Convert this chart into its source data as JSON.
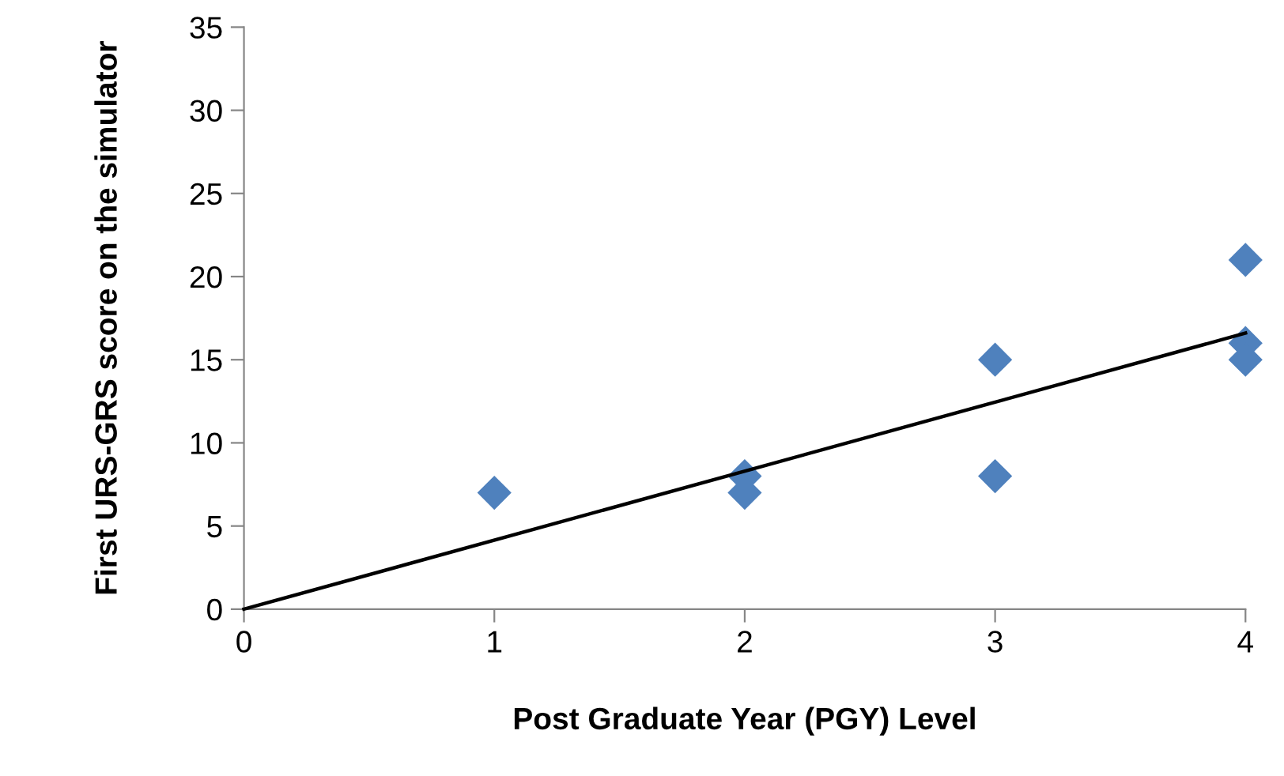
{
  "chart_data": {
    "type": "scatter",
    "xlabel": "Post Graduate Year (PGY) Level",
    "ylabel": "First URS-GRS score on the simulator",
    "xlim": [
      0,
      4
    ],
    "ylim": [
      0,
      35
    ],
    "xticks": [
      0,
      1,
      2,
      3,
      4
    ],
    "yticks": [
      0,
      5,
      10,
      15,
      20,
      25,
      30,
      35
    ],
    "grid": false,
    "legend": false,
    "marker": "diamond",
    "series": [
      {
        "color": "#4f81bd",
        "x": [
          1,
          2,
          2,
          3,
          3,
          4,
          4,
          4
        ],
        "values": [
          7,
          8,
          7,
          15,
          8,
          21,
          16,
          15
        ]
      },
      {
        "type": "line",
        "color": "#000000",
        "x": [
          0,
          4
        ],
        "values": [
          0,
          16.6
        ],
        "marker": "none",
        "line_style": "solid"
      }
    ]
  }
}
